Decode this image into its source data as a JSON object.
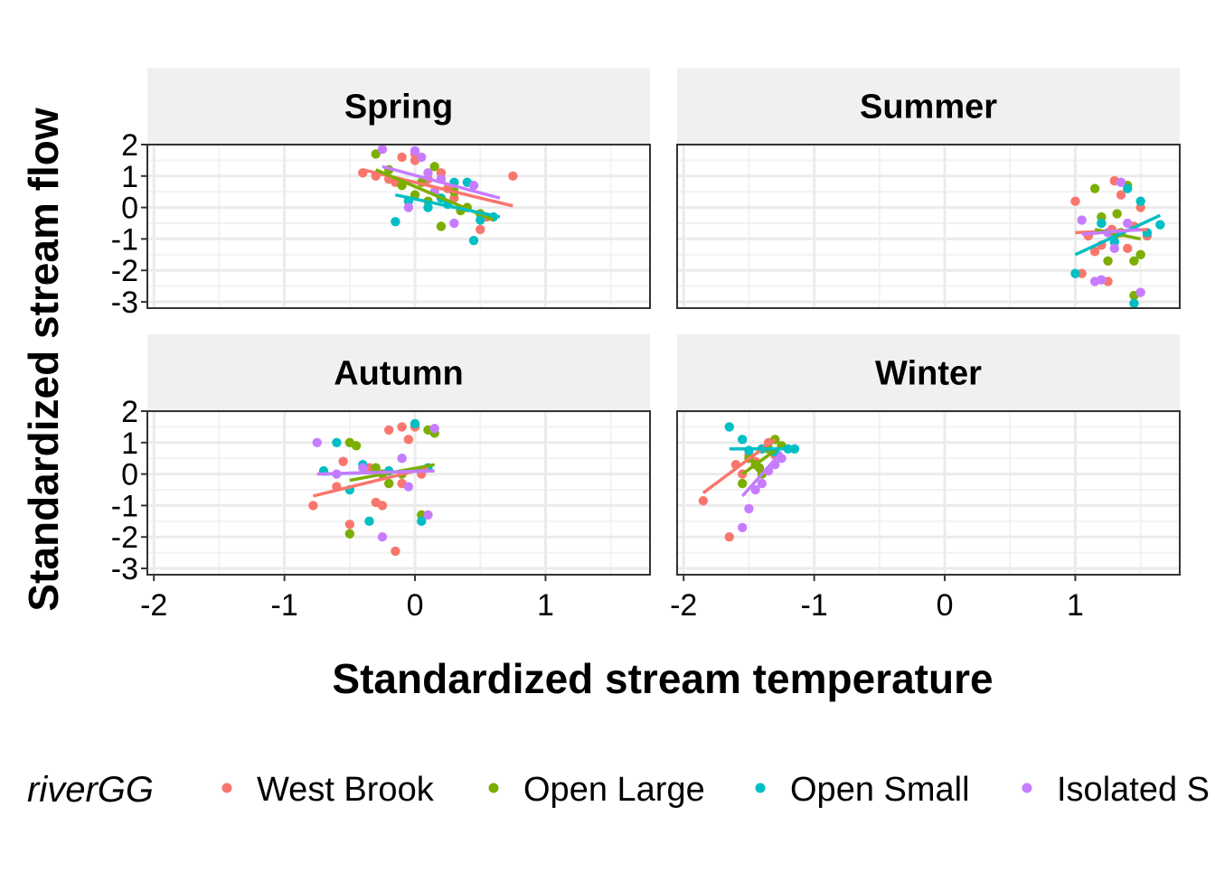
{
  "chart_data": {
    "type": "scatter",
    "subtype": "faceted scatter with linear fits",
    "xlabel": "Standardized stream temperature",
    "ylabel": "Standardized stream flow",
    "xlim": [
      -2.05,
      1.8
    ],
    "ylim": [
      -3.2,
      2.0
    ],
    "x_ticks": [
      "-2",
      "-1",
      "0",
      "1"
    ],
    "y_ticks": [
      "2",
      "1",
      "0",
      "-1",
      "-2",
      "-3"
    ],
    "grid": true,
    "legend": {
      "title": "riverGG",
      "position": "bottom",
      "entries": [
        "West Brook",
        "Open Large",
        "Open Small",
        "Isolated S"
      ]
    },
    "series_colors": {
      "West Brook": "#F8766D",
      "Open Large": "#7CAE00",
      "Open Small": "#00BFC4",
      "Isolated Small": "#C77CFF"
    },
    "facets": [
      {
        "name": "Spring",
        "points": {
          "West Brook": [
            [
              -0.4,
              1.1
            ],
            [
              -0.3,
              1.0
            ],
            [
              -0.2,
              0.9
            ],
            [
              -0.1,
              1.6
            ],
            [
              0.0,
              1.7
            ],
            [
              0.0,
              1.5
            ],
            [
              0.1,
              0.9
            ],
            [
              0.2,
              1.1
            ],
            [
              0.3,
              0.3
            ],
            [
              0.5,
              -0.7
            ],
            [
              0.55,
              -0.3
            ],
            [
              0.75,
              1.0
            ],
            [
              -0.15,
              0.8
            ],
            [
              0.25,
              0.6
            ]
          ],
          "Open Large": [
            [
              -0.3,
              1.7
            ],
            [
              -0.2,
              1.2
            ],
            [
              -0.1,
              0.7
            ],
            [
              0.0,
              0.4
            ],
            [
              0.1,
              0.2
            ],
            [
              0.15,
              1.3
            ],
            [
              0.2,
              -0.6
            ],
            [
              0.3,
              0.5
            ],
            [
              0.4,
              0.0
            ],
            [
              0.5,
              -0.2
            ],
            [
              0.05,
              0.8
            ],
            [
              0.35,
              -0.1
            ]
          ],
          "Open Small": [
            [
              -0.15,
              -0.45
            ],
            [
              -0.05,
              0.2
            ],
            [
              0.1,
              0.0
            ],
            [
              0.2,
              0.3
            ],
            [
              0.3,
              0.8
            ],
            [
              0.4,
              0.8
            ],
            [
              0.45,
              -1.05
            ],
            [
              0.6,
              -0.3
            ],
            [
              0.25,
              0.1
            ],
            [
              0.5,
              -0.4
            ]
          ],
          "Isolated Small": [
            [
              -0.25,
              1.85
            ],
            [
              0.0,
              1.8
            ],
            [
              0.05,
              1.6
            ],
            [
              0.1,
              1.1
            ],
            [
              0.2,
              0.9
            ],
            [
              0.3,
              -0.5
            ],
            [
              0.45,
              0.7
            ],
            [
              -0.05,
              0.0
            ],
            [
              0.15,
              0.5
            ]
          ]
        },
        "fits": {
          "West Brook": [
            [
              -0.4,
              1.2
            ],
            [
              0.75,
              0.05
            ]
          ],
          "Open Large": [
            [
              -0.3,
              1.2
            ],
            [
              0.6,
              -0.4
            ]
          ],
          "Open Small": [
            [
              -0.15,
              0.4
            ],
            [
              0.65,
              -0.3
            ]
          ],
          "Isolated Small": [
            [
              -0.25,
              1.3
            ],
            [
              0.65,
              0.3
            ]
          ]
        }
      },
      {
        "name": "Summer",
        "points": {
          "West Brook": [
            [
              1.0,
              0.2
            ],
            [
              1.05,
              -2.1
            ],
            [
              1.1,
              -0.9
            ],
            [
              1.15,
              -1.4
            ],
            [
              1.2,
              -0.5
            ],
            [
              1.25,
              -2.35
            ],
            [
              1.3,
              0.85
            ],
            [
              1.35,
              0.4
            ],
            [
              1.4,
              -1.3
            ],
            [
              1.45,
              -0.6
            ],
            [
              1.5,
              0.0
            ],
            [
              1.55,
              -0.9
            ],
            [
              1.2,
              -1.2
            ],
            [
              1.28,
              -0.7
            ]
          ],
          "Open Large": [
            [
              1.15,
              0.6
            ],
            [
              1.2,
              -0.3
            ],
            [
              1.25,
              -1.7
            ],
            [
              1.3,
              -0.9
            ],
            [
              1.35,
              -0.8
            ],
            [
              1.4,
              0.7
            ],
            [
              1.45,
              -1.7
            ],
            [
              1.5,
              -1.5
            ],
            [
              1.45,
              -2.8
            ],
            [
              1.32,
              -0.2
            ]
          ],
          "Open Small": [
            [
              1.0,
              -2.1
            ],
            [
              1.2,
              -0.5
            ],
            [
              1.3,
              -1.1
            ],
            [
              1.4,
              0.6
            ],
            [
              1.45,
              -3.05
            ],
            [
              1.5,
              0.2
            ],
            [
              1.55,
              -0.8
            ],
            [
              1.65,
              -0.55
            ]
          ],
          "Isolated Small": [
            [
              1.05,
              -0.4
            ],
            [
              1.15,
              -2.35
            ],
            [
              1.25,
              -0.8
            ],
            [
              1.3,
              -1.3
            ],
            [
              1.35,
              0.8
            ],
            [
              1.4,
              -0.5
            ],
            [
              1.5,
              -2.7
            ],
            [
              1.2,
              -2.3
            ]
          ]
        },
        "fits": {
          "West Brook": [
            [
              1.0,
              -0.8
            ],
            [
              1.55,
              -0.7
            ]
          ],
          "Open Large": [
            [
              1.15,
              -0.7
            ],
            [
              1.5,
              -1.0
            ]
          ],
          "Open Small": [
            [
              1.0,
              -1.5
            ],
            [
              1.65,
              -0.25
            ]
          ],
          "Isolated Small": [
            [
              1.05,
              -0.85
            ],
            [
              1.5,
              -0.7
            ]
          ]
        }
      },
      {
        "name": "Autumn",
        "points": {
          "West Brook": [
            [
              -0.78,
              -1.0
            ],
            [
              -0.6,
              -0.4
            ],
            [
              -0.55,
              0.4
            ],
            [
              -0.5,
              -1.6
            ],
            [
              -0.3,
              -0.9
            ],
            [
              -0.25,
              -1.0
            ],
            [
              -0.2,
              1.4
            ],
            [
              -0.15,
              -2.45
            ],
            [
              -0.1,
              1.5
            ],
            [
              -0.05,
              1.1
            ],
            [
              0.0,
              1.5
            ],
            [
              0.05,
              0.0
            ],
            [
              -0.35,
              0.2
            ],
            [
              -0.1,
              -0.3
            ]
          ],
          "Open Large": [
            [
              -0.5,
              -1.9
            ],
            [
              -0.5,
              1.0
            ],
            [
              -0.45,
              0.9
            ],
            [
              -0.3,
              0.2
            ],
            [
              -0.2,
              -0.3
            ],
            [
              -0.1,
              0.0
            ],
            [
              0.05,
              -1.3
            ],
            [
              0.1,
              1.4
            ],
            [
              0.15,
              1.3
            ],
            [
              -0.25,
              0.0
            ]
          ],
          "Open Small": [
            [
              -0.7,
              0.1
            ],
            [
              -0.6,
              1.0
            ],
            [
              -0.5,
              -0.5
            ],
            [
              -0.35,
              -1.5
            ],
            [
              -0.2,
              0.1
            ],
            [
              0.0,
              1.6
            ],
            [
              0.05,
              -1.5
            ],
            [
              0.1,
              0.2
            ],
            [
              -0.4,
              0.3
            ]
          ],
          "Isolated Small": [
            [
              -0.75,
              1.0
            ],
            [
              -0.6,
              0.0
            ],
            [
              -0.4,
              0.2
            ],
            [
              -0.25,
              -2.0
            ],
            [
              -0.1,
              0.5
            ],
            [
              -0.05,
              -0.4
            ],
            [
              0.1,
              -1.3
            ],
            [
              0.15,
              1.45
            ]
          ]
        },
        "fits": {
          "West Brook": [
            [
              -0.78,
              -0.7
            ],
            [
              0.1,
              0.2
            ]
          ],
          "Open Large": [
            [
              -0.5,
              -0.2
            ],
            [
              0.15,
              0.3
            ]
          ],
          "Open Small": [
            [
              -0.7,
              0.0
            ],
            [
              0.1,
              0.1
            ]
          ],
          "Isolated Small": [
            [
              -0.75,
              0.0
            ],
            [
              0.15,
              0.1
            ]
          ]
        }
      },
      {
        "name": "Winter",
        "points": {
          "West Brook": [
            [
              -1.85,
              -0.85
            ],
            [
              -1.65,
              -2.0
            ],
            [
              -1.6,
              0.3
            ],
            [
              -1.5,
              0.6
            ],
            [
              -1.45,
              0.4
            ],
            [
              -1.4,
              0.8
            ],
            [
              -1.35,
              1.0
            ],
            [
              -1.3,
              0.6
            ],
            [
              -1.55,
              0.0
            ]
          ],
          "Open Large": [
            [
              -1.55,
              -0.3
            ],
            [
              -1.5,
              0.5
            ],
            [
              -1.45,
              0.3
            ],
            [
              -1.4,
              0.0
            ],
            [
              -1.35,
              0.8
            ],
            [
              -1.3,
              1.1
            ],
            [
              -1.25,
              0.9
            ],
            [
              -1.42,
              0.2
            ]
          ],
          "Open Small": [
            [
              -1.65,
              1.5
            ],
            [
              -1.55,
              1.1
            ],
            [
              -1.5,
              0.75
            ],
            [
              -1.4,
              0.8
            ],
            [
              -1.3,
              0.7
            ],
            [
              -1.2,
              0.8
            ],
            [
              -1.15,
              0.8
            ]
          ],
          "Isolated Small": [
            [
              -1.55,
              -1.7
            ],
            [
              -1.5,
              -1.1
            ],
            [
              -1.45,
              -0.5
            ],
            [
              -1.4,
              -0.3
            ],
            [
              -1.35,
              0.1
            ],
            [
              -1.3,
              0.3
            ],
            [
              -1.25,
              0.5
            ]
          ]
        },
        "fits": {
          "West Brook": [
            [
              -1.85,
              -0.6
            ],
            [
              -1.3,
              1.1
            ]
          ],
          "Open Large": [
            [
              -1.55,
              0.0
            ],
            [
              -1.25,
              0.9
            ]
          ],
          "Open Small": [
            [
              -1.65,
              0.8
            ],
            [
              -1.15,
              0.8
            ]
          ],
          "Isolated Small": [
            [
              -1.55,
              -0.7
            ],
            [
              -1.25,
              0.7
            ]
          ]
        }
      }
    ]
  }
}
